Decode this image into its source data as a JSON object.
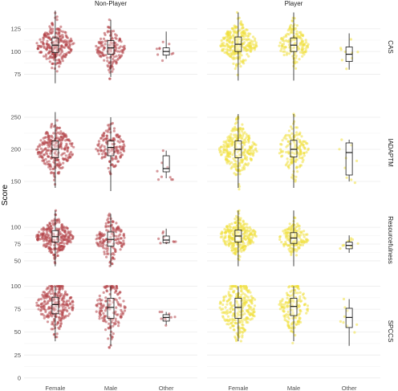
{
  "chart_data": {
    "type": "box-beeswarm-facet",
    "ylabel": "Score",
    "column_facets": [
      "Non-Player",
      "Player"
    ],
    "row_facets": [
      "CAS",
      "IADAPTM",
      "Resourcefulness",
      "SPCCS"
    ],
    "categories": [
      "Female",
      "Male",
      "Other"
    ],
    "group_colors": {
      "Non-Player": "#b5454b",
      "Player": "#f0e040"
    },
    "grid": true,
    "panels": [
      {
        "row": "CAS",
        "ylim": [
          63,
          147
        ],
        "yticks": [
          75,
          100,
          125
        ],
        "boxes": {
          "Non-Player": [
            {
              "category": "Female",
              "min": 65,
              "q1": 99,
              "median": 107,
              "q3": 115,
              "max": 145
            },
            {
              "category": "Male",
              "min": 72,
              "q1": 97,
              "median": 104,
              "q3": 112,
              "max": 135
            },
            {
              "category": "Other",
              "min": 92,
              "q1": 96,
              "median": 100,
              "q3": 104,
              "max": 122
            }
          ],
          "Player": [
            {
              "category": "Female",
              "min": 68,
              "q1": 100,
              "median": 108,
              "q3": 116,
              "max": 143
            },
            {
              "category": "Male",
              "min": 68,
              "q1": 100,
              "median": 107,
              "q3": 115,
              "max": 143
            },
            {
              "category": "Other",
              "min": 80,
              "q1": 89,
              "median": 97,
              "q3": 105,
              "max": 120
            }
          ]
        }
      },
      {
        "row": "IADAPTM",
        "ylim": [
          125,
          265
        ],
        "yticks": [
          150,
          200,
          250
        ],
        "boxes": {
          "Non-Player": [
            {
              "category": "Female",
              "min": 140,
              "q1": 187,
              "median": 200,
              "q3": 213,
              "max": 258
            },
            {
              "category": "Male",
              "min": 135,
              "q1": 190,
              "median": 203,
              "q3": 213,
              "max": 250
            },
            {
              "category": "Other",
              "min": 155,
              "q1": 165,
              "median": 170,
              "q3": 190,
              "max": 198
            }
          ],
          "Player": [
            {
              "category": "Female",
              "min": 140,
              "q1": 187,
              "median": 200,
              "q3": 213,
              "max": 255
            },
            {
              "category": "Male",
              "min": 140,
              "q1": 188,
              "median": 200,
              "q3": 214,
              "max": 255
            },
            {
              "category": "Other",
              "min": 150,
              "q1": 160,
              "median": 195,
              "q3": 210,
              "max": 215
            }
          ]
        }
      },
      {
        "row": "Resourcefulness",
        "ylim": [
          32,
          130
        ],
        "yticks": [
          50,
          75,
          100
        ],
        "boxes": {
          "Non-Player": [
            {
              "category": "Female",
              "min": 42,
              "q1": 78,
              "median": 86,
              "q3": 95,
              "max": 125
            },
            {
              "category": "Male",
              "min": 42,
              "q1": 72,
              "median": 82,
              "q3": 93,
              "max": 120
            },
            {
              "category": "Other",
              "min": 75,
              "q1": 77,
              "median": 81,
              "q3": 87,
              "max": 98
            }
          ],
          "Player": [
            {
              "category": "Female",
              "min": 42,
              "q1": 78,
              "median": 87,
              "q3": 96,
              "max": 125
            },
            {
              "category": "Male",
              "min": 42,
              "q1": 76,
              "median": 84,
              "q3": 92,
              "max": 125
            },
            {
              "category": "Other",
              "min": 62,
              "q1": 68,
              "median": 73,
              "q3": 78,
              "max": 88
            }
          ]
        }
      },
      {
        "row": "SPCCS",
        "ylim": [
          -2,
          104
        ],
        "yticks": [
          0,
          25,
          50,
          75,
          100
        ],
        "boxes": {
          "Non-Player": [
            {
              "category": "Female",
              "min": 40,
              "q1": 70,
              "median": 80,
              "q3": 88,
              "max": 100
            },
            {
              "category": "Male",
              "min": 35,
              "q1": 65,
              "median": 77,
              "q3": 87,
              "max": 100
            },
            {
              "category": "Other",
              "min": 58,
              "q1": 62,
              "median": 66,
              "q3": 69,
              "max": 72
            }
          ],
          "Player": [
            {
              "category": "Female",
              "min": 40,
              "q1": 65,
              "median": 77,
              "q3": 87,
              "max": 100
            },
            {
              "category": "Male",
              "min": 40,
              "q1": 68,
              "median": 78,
              "q3": 87,
              "max": 100
            },
            {
              "category": "Other",
              "min": 35,
              "q1": 55,
              "median": 66,
              "q3": 76,
              "max": 86
            }
          ]
        }
      }
    ]
  }
}
